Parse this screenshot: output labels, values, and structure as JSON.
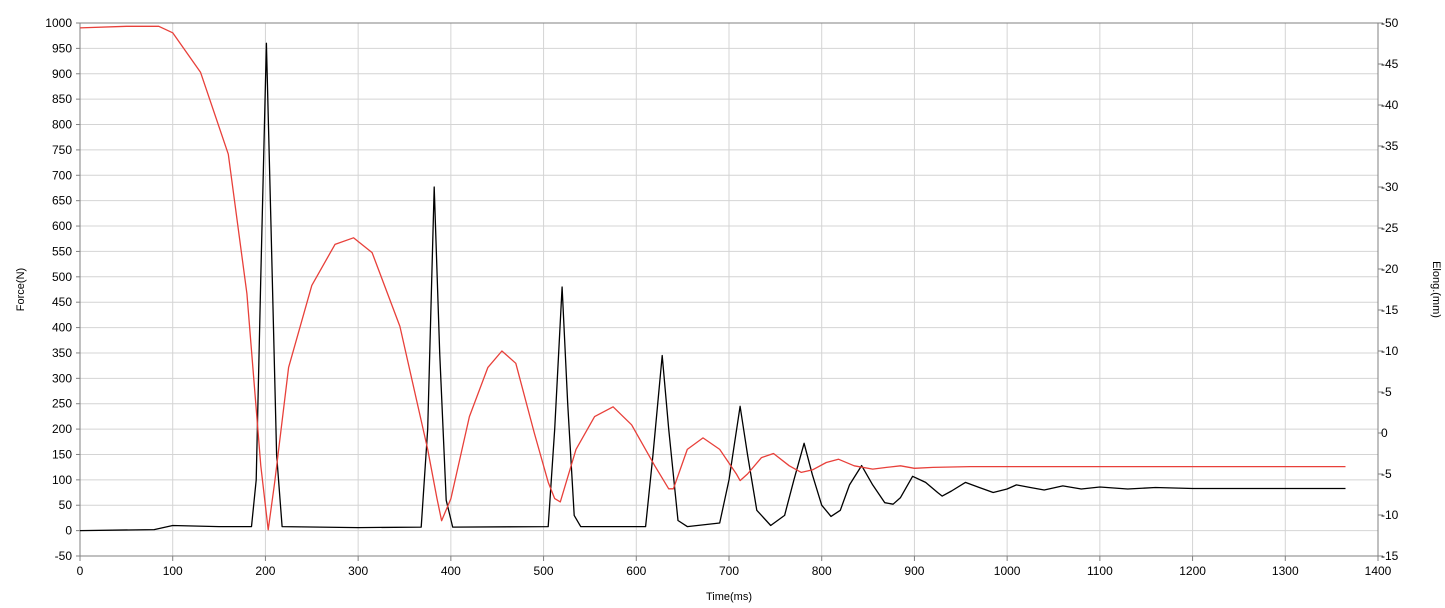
{
  "chart_data": {
    "type": "line",
    "title": "",
    "xlabel": "Time(ms)",
    "ylabel": "Force(N)",
    "y2label": "Elong.(mm)",
    "xlim": [
      0,
      1400
    ],
    "ylim": [
      -50,
      1000
    ],
    "y2lim": [
      -15,
      50
    ],
    "x_ticks": [
      0,
      100,
      200,
      300,
      400,
      500,
      600,
      700,
      800,
      900,
      1000,
      1100,
      1200,
      1300,
      1400
    ],
    "y_ticks": [
      -50,
      0,
      50,
      100,
      150,
      200,
      250,
      300,
      350,
      400,
      450,
      500,
      550,
      600,
      650,
      700,
      750,
      800,
      850,
      900,
      950,
      1000
    ],
    "y2_ticks": [
      -15,
      -10,
      -5,
      0,
      5,
      10,
      15,
      20,
      25,
      30,
      35,
      40,
      45,
      50
    ],
    "grid": true,
    "legend": "none",
    "series": [
      {
        "axis": "left",
        "color": "#000000",
        "baseline_points": [
          [
            0,
            2
          ],
          [
            180,
            5
          ],
          [
            360,
            5
          ],
          [
            500,
            5
          ],
          [
            595,
            6
          ],
          [
            700,
            10
          ],
          [
            1365,
            83
          ]
        ],
        "points": [
          [
            0,
            0
          ],
          [
            80,
            2
          ],
          [
            100,
            10
          ],
          [
            150,
            8
          ],
          [
            185,
            8
          ],
          [
            190,
            100
          ],
          [
            195,
            500
          ],
          [
            201,
            960
          ],
          [
            206,
            600
          ],
          [
            212,
            150
          ],
          [
            218,
            8
          ],
          [
            300,
            6
          ],
          [
            368,
            7
          ],
          [
            375,
            200
          ],
          [
            382,
            677
          ],
          [
            388,
            350
          ],
          [
            395,
            60
          ],
          [
            402,
            7
          ],
          [
            505,
            8
          ],
          [
            512,
            200
          ],
          [
            520,
            480
          ],
          [
            526,
            250
          ],
          [
            533,
            30
          ],
          [
            540,
            8
          ],
          [
            610,
            8
          ],
          [
            618,
            150
          ],
          [
            628,
            345
          ],
          [
            635,
            200
          ],
          [
            645,
            20
          ],
          [
            655,
            8
          ],
          [
            690,
            15
          ],
          [
            700,
            100
          ],
          [
            712,
            245
          ],
          [
            720,
            150
          ],
          [
            730,
            40
          ],
          [
            745,
            10
          ],
          [
            760,
            30
          ],
          [
            770,
            100
          ],
          [
            781,
            172
          ],
          [
            790,
            110
          ],
          [
            800,
            50
          ],
          [
            810,
            28
          ],
          [
            820,
            40
          ],
          [
            830,
            90
          ],
          [
            843,
            128
          ],
          [
            855,
            90
          ],
          [
            868,
            55
          ],
          [
            877,
            52
          ],
          [
            885,
            65
          ],
          [
            898,
            107
          ],
          [
            912,
            95
          ],
          [
            925,
            75
          ],
          [
            930,
            68
          ],
          [
            940,
            78
          ],
          [
            955,
            95
          ],
          [
            970,
            85
          ],
          [
            985,
            75
          ],
          [
            1000,
            82
          ],
          [
            1010,
            90
          ],
          [
            1025,
            85
          ],
          [
            1040,
            80
          ],
          [
            1060,
            88
          ],
          [
            1080,
            82
          ],
          [
            1100,
            86
          ],
          [
            1130,
            82
          ],
          [
            1160,
            85
          ],
          [
            1200,
            83
          ],
          [
            1300,
            83
          ],
          [
            1365,
            83
          ]
        ]
      },
      {
        "axis": "right",
        "color": "#e8403a",
        "points": [
          [
            0,
            49.4
          ],
          [
            50,
            49.6
          ],
          [
            85,
            49.6
          ],
          [
            100,
            48.8
          ],
          [
            130,
            44
          ],
          [
            160,
            34
          ],
          [
            180,
            17
          ],
          [
            195,
            -4
          ],
          [
            203,
            -11.8
          ],
          [
            210,
            -6
          ],
          [
            225,
            8
          ],
          [
            250,
            18
          ],
          [
            275,
            23
          ],
          [
            295,
            23.8
          ],
          [
            315,
            22
          ],
          [
            345,
            13
          ],
          [
            375,
            -2
          ],
          [
            385,
            -8
          ],
          [
            390,
            -10.7
          ],
          [
            400,
            -8
          ],
          [
            420,
            2
          ],
          [
            440,
            8
          ],
          [
            455,
            10
          ],
          [
            470,
            8.5
          ],
          [
            490,
            0
          ],
          [
            505,
            -6
          ],
          [
            512,
            -8
          ],
          [
            518,
            -8.4
          ],
          [
            535,
            -2
          ],
          [
            555,
            2
          ],
          [
            575,
            3.2
          ],
          [
            595,
            1
          ],
          [
            620,
            -4
          ],
          [
            635,
            -6.8
          ],
          [
            640,
            -6.8
          ],
          [
            655,
            -2
          ],
          [
            672,
            -0.6
          ],
          [
            690,
            -2
          ],
          [
            708,
            -5
          ],
          [
            712,
            -5.8
          ],
          [
            720,
            -5
          ],
          [
            735,
            -3
          ],
          [
            748,
            -2.5
          ],
          [
            765,
            -4
          ],
          [
            778,
            -4.8
          ],
          [
            790,
            -4.5
          ],
          [
            805,
            -3.6
          ],
          [
            818,
            -3.2
          ],
          [
            835,
            -4
          ],
          [
            855,
            -4.4
          ],
          [
            870,
            -4.2
          ],
          [
            885,
            -4.0
          ],
          [
            900,
            -4.3
          ],
          [
            920,
            -4.2
          ],
          [
            960,
            -4.1
          ],
          [
            1000,
            -4.1
          ],
          [
            1100,
            -4.1
          ],
          [
            1200,
            -4.1
          ],
          [
            1300,
            -4.1
          ],
          [
            1365,
            -4.1
          ]
        ]
      }
    ]
  }
}
